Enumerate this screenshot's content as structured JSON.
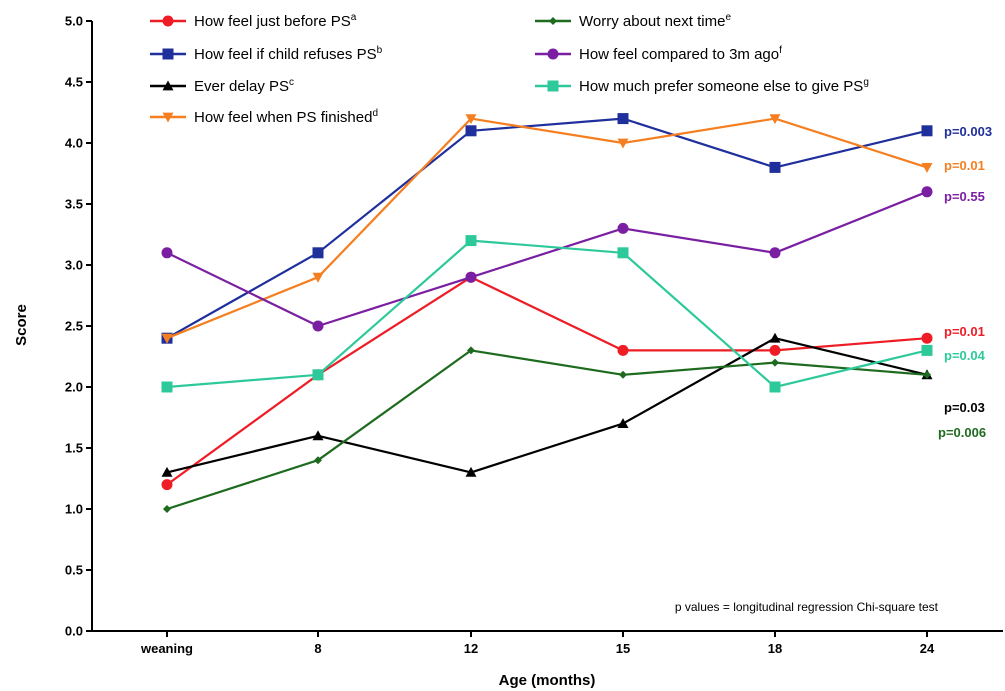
{
  "chart_data": {
    "type": "line",
    "xlabel": "Age (months)",
    "ylabel": "Score",
    "ylim": [
      0,
      5
    ],
    "yticks": [
      "0.0",
      "0.5",
      "1.0",
      "1.5",
      "2.0",
      "2.5",
      "3.0",
      "3.5",
      "4.0",
      "4.5",
      "5.0"
    ],
    "categories": [
      "weaning",
      "8",
      "12",
      "15",
      "18",
      "24"
    ],
    "grid": false,
    "legend_position": "top",
    "note": "p values = longitudinal regression Chi-square test",
    "series": [
      {
        "name": "How feel just before PS",
        "sup": "a",
        "color": "#ee1c25",
        "marker": "circle",
        "values": [
          1.2,
          2.1,
          2.9,
          2.3,
          2.3,
          2.4
        ],
        "pvalue": "p=0.01"
      },
      {
        "name": "How feel if child refuses PS",
        "sup": "b",
        "color": "#1f2f9c",
        "marker": "square",
        "values": [
          2.4,
          3.1,
          4.1,
          4.2,
          3.8,
          4.1
        ],
        "pvalue": "p=0.003"
      },
      {
        "name": "Ever delay PS",
        "sup": "c",
        "color": "#000000",
        "marker": "triangle-up",
        "values": [
          1.3,
          1.6,
          1.3,
          1.7,
          2.4,
          2.1
        ],
        "pvalue": "p=0.03"
      },
      {
        "name": "How feel when PS finished",
        "sup": "d",
        "color": "#f57f20",
        "marker": "triangle-down",
        "values": [
          2.4,
          2.9,
          4.2,
          4.0,
          4.2,
          3.8
        ],
        "pvalue": "p=0.01"
      },
      {
        "name": "Worry about next time",
        "sup": "e",
        "color": "#1e6b1f",
        "marker": "diamond",
        "values": [
          1.0,
          1.4,
          2.3,
          2.1,
          2.2,
          2.1
        ],
        "pvalue": "p=0.006"
      },
      {
        "name": "How feel compared to 3m ago",
        "sup": "f",
        "color": "#7b1fa2",
        "marker": "circle",
        "values": [
          3.1,
          2.5,
          2.9,
          3.3,
          3.1,
          3.6
        ],
        "pvalue": "p=0.55"
      },
      {
        "name": "How much prefer someone else to give PS",
        "sup": "g",
        "color": "#2ec99a",
        "marker": "square",
        "values": [
          2.0,
          2.1,
          3.2,
          3.1,
          2.0,
          2.3
        ],
        "pvalue": "p=0.04"
      }
    ]
  }
}
